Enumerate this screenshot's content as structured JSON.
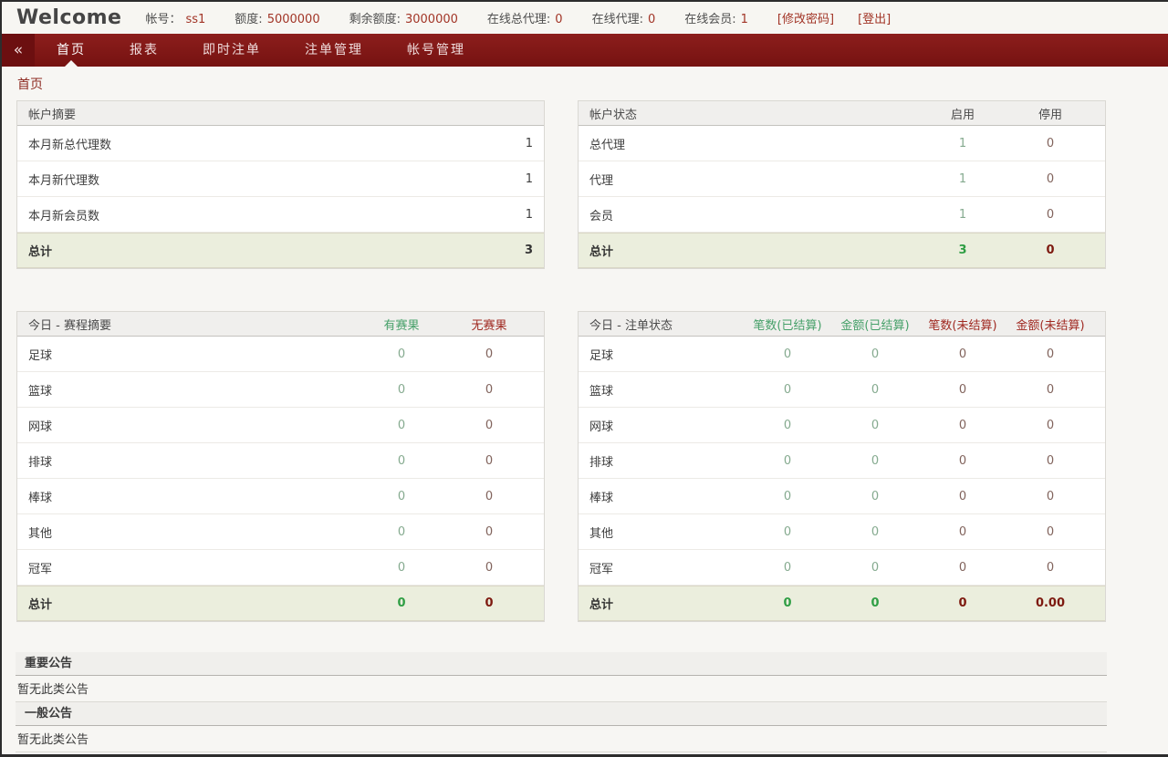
{
  "topbar": {
    "brand": "Welcome",
    "items": [
      {
        "slug": "account",
        "label": "帐号：",
        "value": "ss1"
      },
      {
        "slug": "credit",
        "label": "额度:",
        "value": "5000000"
      },
      {
        "slug": "remaining-credit",
        "label": "剩余额度:",
        "value": "3000000"
      },
      {
        "slug": "online-super-agent",
        "label": "在线总代理:",
        "value": "0"
      },
      {
        "slug": "online-agent",
        "label": "在线代理:",
        "value": "0"
      },
      {
        "slug": "online-member",
        "label": "在线会员:",
        "value": "1"
      }
    ],
    "change_password": "[修改密码]",
    "logout": "[登出]"
  },
  "nav": {
    "collapse": "«",
    "tabs": [
      {
        "slug": "home",
        "label": "首页",
        "active": true
      },
      {
        "slug": "reports",
        "label": "报表",
        "active": false
      },
      {
        "slug": "live-bets",
        "label": "即时注单",
        "active": false
      },
      {
        "slug": "bet-management",
        "label": "注单管理",
        "active": false
      },
      {
        "slug": "account-management",
        "label": "帐号管理",
        "active": false
      }
    ]
  },
  "breadcrumb": "首页",
  "panels": {
    "account_summary": {
      "title": "帐户摘要",
      "rows": [
        {
          "label": "本月新总代理数",
          "values": [
            "1"
          ]
        },
        {
          "label": "本月新代理数",
          "values": [
            "1"
          ]
        },
        {
          "label": "本月新会员数",
          "values": [
            "1"
          ]
        }
      ],
      "total": {
        "label": "总计",
        "values": [
          "3"
        ]
      }
    },
    "account_status": {
      "title": "帐户状态",
      "colored_headers": false,
      "columns": [
        {
          "label": "启用",
          "tone": "green"
        },
        {
          "label": "停用",
          "tone": "red"
        }
      ],
      "rows": [
        {
          "label": "总代理",
          "values": [
            "1",
            "0"
          ]
        },
        {
          "label": "代理",
          "values": [
            "1",
            "0"
          ]
        },
        {
          "label": "会员",
          "values": [
            "1",
            "0"
          ]
        }
      ],
      "total": {
        "label": "总计",
        "values": [
          "3",
          "0"
        ]
      }
    },
    "schedule_summary": {
      "title": "今日 - 赛程摘要",
      "colored_headers": true,
      "columns": [
        {
          "label": "有赛果",
          "tone": "green"
        },
        {
          "label": "无赛果",
          "tone": "red"
        }
      ],
      "rows": [
        {
          "label": "足球",
          "values": [
            "0",
            "0"
          ]
        },
        {
          "label": "篮球",
          "values": [
            "0",
            "0"
          ]
        },
        {
          "label": "网球",
          "values": [
            "0",
            "0"
          ]
        },
        {
          "label": "排球",
          "values": [
            "0",
            "0"
          ]
        },
        {
          "label": "棒球",
          "values": [
            "0",
            "0"
          ]
        },
        {
          "label": "其他",
          "values": [
            "0",
            "0"
          ]
        },
        {
          "label": "冠军",
          "values": [
            "0",
            "0"
          ]
        }
      ],
      "total": {
        "label": "总计",
        "values": [
          "0",
          "0"
        ]
      }
    },
    "ticket_status": {
      "title": "今日 - 注单状态",
      "colored_headers": true,
      "columns": [
        {
          "label": "笔数(已结算)",
          "tone": "green"
        },
        {
          "label": "金额(已结算)",
          "tone": "green"
        },
        {
          "label": "笔数(未结算)",
          "tone": "red"
        },
        {
          "label": "金额(未结算)",
          "tone": "red"
        }
      ],
      "rows": [
        {
          "label": "足球",
          "values": [
            "0",
            "0",
            "0",
            "0"
          ]
        },
        {
          "label": "篮球",
          "values": [
            "0",
            "0",
            "0",
            "0"
          ]
        },
        {
          "label": "网球",
          "values": [
            "0",
            "0",
            "0",
            "0"
          ]
        },
        {
          "label": "排球",
          "values": [
            "0",
            "0",
            "0",
            "0"
          ]
        },
        {
          "label": "棒球",
          "values": [
            "0",
            "0",
            "0",
            "0"
          ]
        },
        {
          "label": "其他",
          "values": [
            "0",
            "0",
            "0",
            "0"
          ]
        },
        {
          "label": "冠军",
          "values": [
            "0",
            "0",
            "0",
            "0"
          ]
        }
      ],
      "total": {
        "label": "总计",
        "values": [
          "0",
          "0",
          "0",
          "0.00"
        ]
      }
    }
  },
  "announcements": [
    {
      "slug": "important",
      "title": "重要公告",
      "body": "暂无此类公告"
    },
    {
      "slug": "general",
      "title": "一般公告",
      "body": "暂无此类公告"
    }
  ],
  "colors": {
    "nav_maroon": "#7d1614",
    "accent_red_text": "#a23527",
    "settled_green": "#46a069",
    "unsettled_red": "#a02a22",
    "total_green_bold": "#2f9e44",
    "total_red_bold": "#7d190f",
    "total_row_bg": "#ebeedd",
    "header_bg": "#f0efed"
  }
}
